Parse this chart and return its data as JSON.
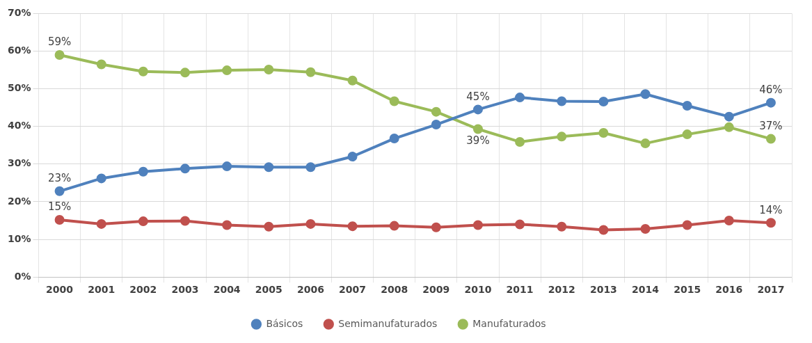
{
  "chart_data": {
    "type": "line",
    "categories": [
      "2000",
      "2001",
      "2002",
      "2003",
      "2004",
      "2005",
      "2006",
      "2007",
      "2008",
      "2009",
      "2010",
      "2011",
      "2012",
      "2013",
      "2014",
      "2015",
      "2016",
      "2017"
    ],
    "series": [
      {
        "name": "Básicos",
        "color": "#4f81bd",
        "values": [
          22.8,
          26.2,
          28.0,
          28.8,
          29.4,
          29.2,
          29.2,
          32.0,
          36.8,
          40.5,
          44.5,
          47.7,
          46.7,
          46.6,
          48.6,
          45.5,
          42.6,
          46.3
        ],
        "value_labels": [
          "23%",
          null,
          null,
          null,
          null,
          null,
          null,
          null,
          null,
          null,
          "45%",
          null,
          null,
          null,
          null,
          null,
          null,
          "46%"
        ]
      },
      {
        "name": "Semimanufaturados",
        "color": "#c0504d",
        "values": [
          15.2,
          14.1,
          14.8,
          14.9,
          13.8,
          13.4,
          14.1,
          13.5,
          13.6,
          13.2,
          13.8,
          14.0,
          13.4,
          12.5,
          12.8,
          13.8,
          15.0,
          14.4
        ],
        "value_labels": [
          "15%",
          null,
          null,
          null,
          null,
          null,
          null,
          null,
          null,
          null,
          null,
          null,
          null,
          null,
          null,
          null,
          null,
          "14%"
        ]
      },
      {
        "name": "Manufaturados",
        "color": "#9bbb59",
        "values": [
          59.0,
          56.5,
          54.6,
          54.3,
          54.9,
          55.1,
          54.4,
          52.2,
          46.7,
          43.9,
          39.3,
          35.9,
          37.3,
          38.3,
          35.5,
          37.9,
          39.8,
          36.7
        ],
        "value_labels": [
          "59%",
          null,
          null,
          null,
          null,
          null,
          null,
          null,
          null,
          null,
          "39%",
          null,
          null,
          null,
          null,
          null,
          null,
          "37%"
        ]
      }
    ],
    "ylim": [
      0,
      70
    ],
    "yticks": [
      {
        "value": 0,
        "label": "0%"
      },
      {
        "value": 10,
        "label": "10%"
      },
      {
        "value": 20,
        "label": "20%"
      },
      {
        "value": 30,
        "label": "30%"
      },
      {
        "value": 40,
        "label": "40%"
      },
      {
        "value": 50,
        "label": "50%"
      },
      {
        "value": 60,
        "label": "60%"
      },
      {
        "value": 70,
        "label": "70%"
      }
    ],
    "grid": true,
    "legend": "bottom",
    "marker": "circle",
    "line_style": "solid"
  }
}
